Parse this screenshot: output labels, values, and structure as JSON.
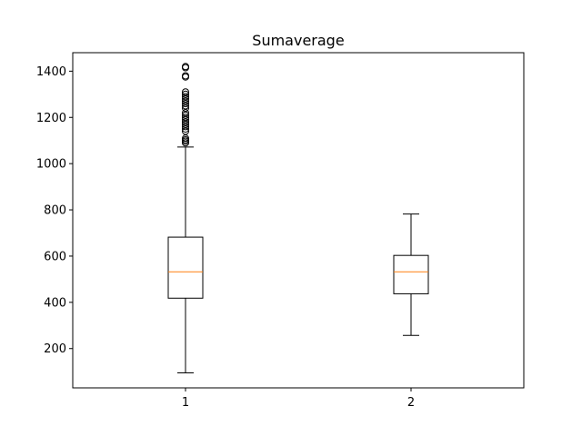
{
  "chart_data": {
    "type": "box",
    "title": "Sumaverage",
    "xlabel": "",
    "ylabel": "",
    "categories": [
      "1",
      "2"
    ],
    "ylim": [
      30,
      1480
    ],
    "y_ticks": [
      200,
      400,
      600,
      800,
      1000,
      1200,
      1400
    ],
    "grid": false,
    "colors": {
      "box": "#000000",
      "median": "#ff7f0e",
      "outlier": "#000000"
    },
    "boxes": [
      {
        "category": "1",
        "whisker_low": 95,
        "q1": 418,
        "median": 532,
        "q3": 682,
        "whisker_high": 1072,
        "outliers": [
          1090,
          1097,
          1103,
          1110,
          1140,
          1150,
          1160,
          1170,
          1180,
          1190,
          1200,
          1210,
          1220,
          1240,
          1250,
          1260,
          1270,
          1280,
          1290,
          1300,
          1310,
          1375,
          1380,
          1415,
          1420
        ]
      },
      {
        "category": "2",
        "whisker_low": 257,
        "q1": 437,
        "median": 532,
        "q3": 603,
        "whisker_high": 782,
        "outliers": []
      }
    ]
  }
}
